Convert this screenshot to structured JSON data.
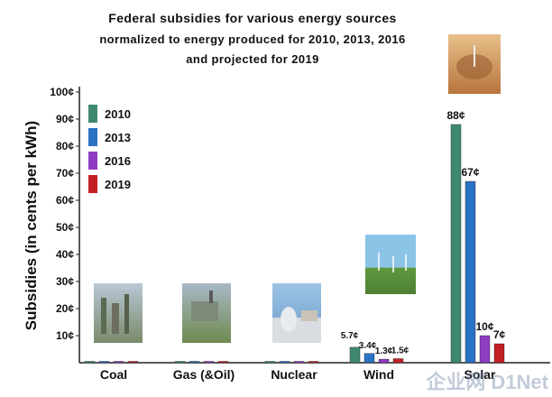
{
  "title_lines": [
    "Federal subsidies for various energy sources",
    "normalized to energy produced for 2010, 2013, 2016",
    "and projected for 2019"
  ],
  "legend": [
    {
      "label": "2010",
      "color": "#3f8a6e"
    },
    {
      "label": "2013",
      "color": "#2a72c4"
    },
    {
      "label": "2016",
      "color": "#8e3cc4"
    },
    {
      "label": "2019",
      "color": "#c41f24"
    }
  ],
  "watermark": "企业网 D1Net",
  "chart_data": {
    "type": "bar",
    "ylabel": "Subsidies (in cents per kWh)",
    "ylim": [
      0,
      100
    ],
    "yticks": [
      "10¢",
      "20¢",
      "30¢",
      "40¢",
      "50¢",
      "60¢",
      "70¢",
      "80¢",
      "90¢",
      "100¢"
    ],
    "categories": [
      "Coal",
      "Gas (&Oil)",
      "Nuclear",
      "Wind",
      "Solar"
    ],
    "series": [
      {
        "name": "2010",
        "color": "#3f8a6e",
        "values": [
          0.5,
          0.5,
          0.5,
          5.7,
          88
        ]
      },
      {
        "name": "2013",
        "color": "#2a72c4",
        "values": [
          0.5,
          0.5,
          0.5,
          3.4,
          67
        ]
      },
      {
        "name": "2016",
        "color": "#8e3cc4",
        "values": [
          0.5,
          0.5,
          0.5,
          1.3,
          10
        ]
      },
      {
        "name": "2019",
        "color": "#c41f24",
        "values": [
          0.5,
          0.5,
          0.5,
          1.5,
          7
        ]
      }
    ],
    "data_labels": {
      "Wind": [
        "5.7¢",
        "3.4¢",
        "1.3¢",
        "1.5¢"
      ],
      "Solar": [
        "88¢",
        "67¢",
        "10¢",
        "7¢"
      ]
    }
  }
}
